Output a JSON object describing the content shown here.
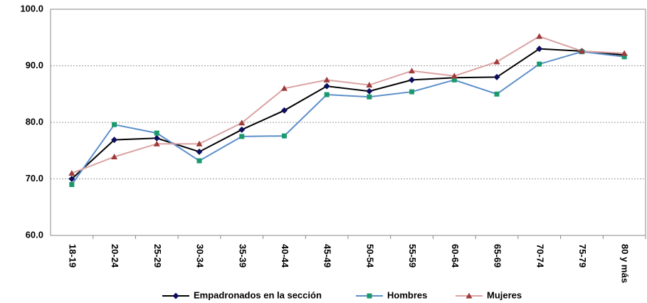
{
  "chart_data": {
    "type": "line",
    "categories": [
      "18-19",
      "20-24",
      "25-29",
      "30-34",
      "35-39",
      "40-44",
      "45-49",
      "50-54",
      "55-59",
      "60-64",
      "65-69",
      "70-74",
      "75-79",
      "80 y más"
    ],
    "series": [
      {
        "name": "Empadronados en la sección",
        "color": "#000000",
        "marker_color": "#0d0d5e",
        "marker": "diamond",
        "values": [
          70.0,
          76.9,
          77.2,
          74.8,
          78.7,
          82.1,
          86.4,
          85.5,
          87.5,
          87.9,
          88.0,
          93.0,
          92.6,
          91.9
        ]
      },
      {
        "name": "Hombres",
        "color": "#5b8fc9",
        "marker_color": "#1a9a6a",
        "marker": "square",
        "values": [
          69.0,
          79.6,
          78.1,
          73.2,
          77.5,
          77.6,
          84.9,
          84.5,
          85.4,
          87.5,
          85.0,
          90.3,
          92.5,
          91.6
        ]
      },
      {
        "name": "Mujeres",
        "color": "#dba3a3",
        "marker_color": "#9e3a3a",
        "marker": "triangle",
        "values": [
          71.0,
          73.9,
          76.2,
          76.2,
          79.9,
          86.0,
          87.5,
          86.6,
          89.1,
          88.2,
          90.7,
          95.2,
          92.6,
          92.2
        ]
      }
    ],
    "ylim": [
      60,
      100
    ],
    "yticks": [
      {
        "value": 60,
        "label": "60.0"
      },
      {
        "value": 70,
        "label": "70.0"
      },
      {
        "value": 80,
        "label": "80.0"
      },
      {
        "value": 90,
        "label": "90.0"
      },
      {
        "value": 100,
        "label": "100.0"
      }
    ],
    "grid": true,
    "legend": "bottom"
  }
}
